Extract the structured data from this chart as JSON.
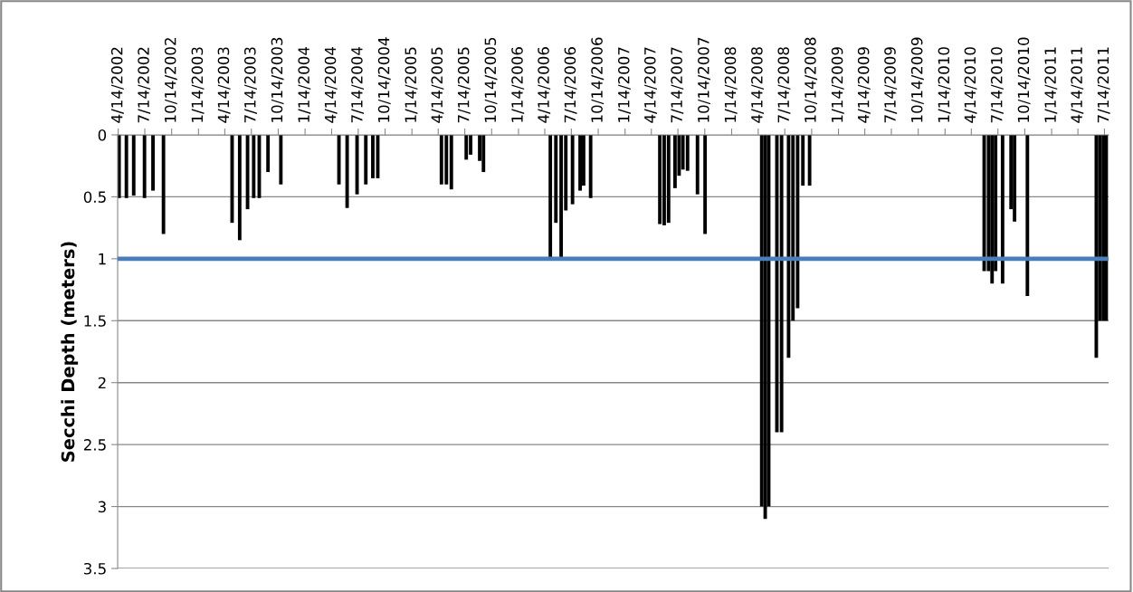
{
  "chart_data": {
    "type": "bar",
    "ylabel": "Secchi Depth (meters)",
    "x": [
      "2002-04-17",
      "2002-05-12",
      "2002-06-06",
      "2002-07-13",
      "2002-08-11",
      "2002-09-16",
      "2003-05-09",
      "2003-06-04",
      "2003-07-01",
      "2003-07-22",
      "2003-08-10",
      "2003-09-09",
      "2003-10-23",
      "2004-05-09",
      "2004-06-06",
      "2004-07-10",
      "2004-08-09",
      "2004-09-02",
      "2004-09-19",
      "2005-04-25",
      "2005-05-12",
      "2005-05-29",
      "2005-07-19",
      "2005-08-03",
      "2005-09-03",
      "2005-09-16",
      "2006-05-03",
      "2006-05-22",
      "2006-06-09",
      "2006-06-25",
      "2006-07-18",
      "2006-08-13",
      "2006-08-25",
      "2006-09-18",
      "2007-05-13",
      "2007-05-28",
      "2007-06-12",
      "2007-07-04",
      "2007-07-18",
      "2007-07-31",
      "2007-08-16",
      "2007-09-19",
      "2007-10-15",
      "2008-04-26",
      "2008-05-08",
      "2008-05-20",
      "2008-06-17",
      "2008-07-03",
      "2008-07-27",
      "2008-08-11",
      "2008-08-27",
      "2008-09-14",
      "2008-10-07",
      "2010-05-28",
      "2010-06-12",
      "2010-06-24",
      "2010-07-06",
      "2010-07-30",
      "2010-08-28",
      "2010-09-09",
      "2010-10-23",
      "2011-06-16",
      "2011-06-28",
      "2011-07-10",
      "2011-07-20"
    ],
    "values": [
      0.51,
      0.51,
      0.49,
      0.51,
      0.45,
      0.8,
      0.71,
      0.85,
      0.6,
      0.51,
      0.51,
      0.3,
      0.4,
      0.4,
      0.59,
      0.48,
      0.4,
      0.35,
      0.35,
      0.4,
      0.4,
      0.44,
      0.2,
      0.16,
      0.21,
      0.3,
      1.0,
      0.71,
      1.0,
      0.61,
      0.56,
      0.45,
      0.41,
      0.51,
      0.72,
      0.73,
      0.71,
      0.43,
      0.33,
      0.28,
      0.29,
      0.48,
      0.8,
      3.0,
      3.1,
      3.0,
      2.4,
      2.4,
      1.8,
      1.5,
      1.4,
      0.41,
      0.41,
      1.1,
      1.1,
      1.2,
      1.1,
      1.2,
      0.6,
      0.7,
      1.3,
      1.8,
      1.5,
      1.5,
      1.5
    ],
    "color": "#000000",
    "xlim": [
      "2002-04-12",
      "2011-07-28"
    ],
    "xticks": [
      {
        "value": "2002-04-14",
        "label": "4/14/2002"
      },
      {
        "value": "2002-07-14",
        "label": "7/14/2002"
      },
      {
        "value": "2002-10-14",
        "label": "10/14/2002"
      },
      {
        "value": "2003-01-14",
        "label": "1/14/2003"
      },
      {
        "value": "2003-04-14",
        "label": "4/14/2003"
      },
      {
        "value": "2003-07-14",
        "label": "7/14/2003"
      },
      {
        "value": "2003-10-14",
        "label": "10/14/2003"
      },
      {
        "value": "2004-01-14",
        "label": "1/14/2004"
      },
      {
        "value": "2004-04-14",
        "label": "4/14/2004"
      },
      {
        "value": "2004-07-14",
        "label": "7/14/2004"
      },
      {
        "value": "2004-10-14",
        "label": "10/14/2004"
      },
      {
        "value": "2005-01-14",
        "label": "1/14/2005"
      },
      {
        "value": "2005-04-14",
        "label": "4/14/2005"
      },
      {
        "value": "2005-07-14",
        "label": "7/14/2005"
      },
      {
        "value": "2005-10-14",
        "label": "10/14/2005"
      },
      {
        "value": "2006-01-14",
        "label": "1/14/2006"
      },
      {
        "value": "2006-04-14",
        "label": "4/14/2006"
      },
      {
        "value": "2006-07-14",
        "label": "7/14/2006"
      },
      {
        "value": "2006-10-14",
        "label": "10/14/2006"
      },
      {
        "value": "2007-01-14",
        "label": "1/14/2007"
      },
      {
        "value": "2007-04-14",
        "label": "4/14/2007"
      },
      {
        "value": "2007-07-14",
        "label": "7/14/2007"
      },
      {
        "value": "2007-10-14",
        "label": "10/14/2007"
      },
      {
        "value": "2008-01-14",
        "label": "1/14/2008"
      },
      {
        "value": "2008-04-14",
        "label": "4/14/2008"
      },
      {
        "value": "2008-07-14",
        "label": "7/14/2008"
      },
      {
        "value": "2008-10-14",
        "label": "10/14/2008"
      },
      {
        "value": "2009-01-14",
        "label": "1/14/2009"
      },
      {
        "value": "2009-04-14",
        "label": "4/14/2009"
      },
      {
        "value": "2009-07-14",
        "label": "7/14/2009"
      },
      {
        "value": "2009-10-14",
        "label": "10/14/2009"
      },
      {
        "value": "2010-01-14",
        "label": "1/14/2010"
      },
      {
        "value": "2010-04-14",
        "label": "4/14/2010"
      },
      {
        "value": "2010-07-14",
        "label": "7/14/2010"
      },
      {
        "value": "2010-10-14",
        "label": "10/14/2010"
      },
      {
        "value": "2011-01-14",
        "label": "1/14/2011"
      },
      {
        "value": "2011-04-14",
        "label": "4/14/2011"
      },
      {
        "value": "2011-07-14",
        "label": "7/14/2011"
      }
    ],
    "ylim": [
      3.5,
      0
    ],
    "yticks": [
      0,
      0.5,
      1,
      1.5,
      2,
      2.5,
      3,
      3.5
    ],
    "grid": "y",
    "ref_lines": [
      {
        "axis": "y",
        "value": 1,
        "color": "#4a7ebb"
      }
    ]
  }
}
